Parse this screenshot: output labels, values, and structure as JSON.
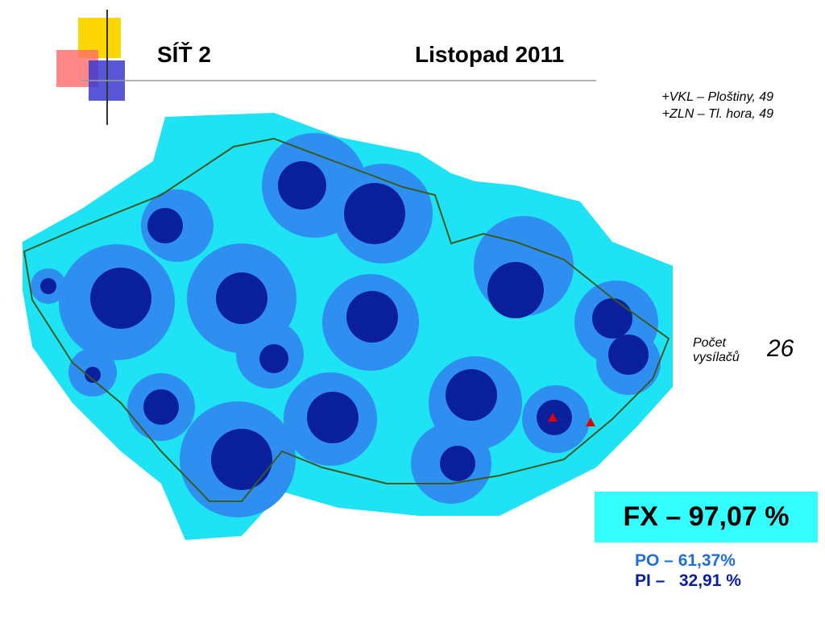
{
  "header": {
    "title": "SÍŤ 2",
    "date": "Listopad 2011"
  },
  "notes": [
    "+VKL – Ploštiny, 49",
    "+ZLN – Tl. hora, 49"
  ],
  "transmitters": {
    "label": [
      "Počet",
      "vysílačů"
    ],
    "count": "26"
  },
  "coverage": {
    "fx": "FX – 97,07 %",
    "po": "PO – 61,37%",
    "pi": "PI –   32,91 %"
  }
}
